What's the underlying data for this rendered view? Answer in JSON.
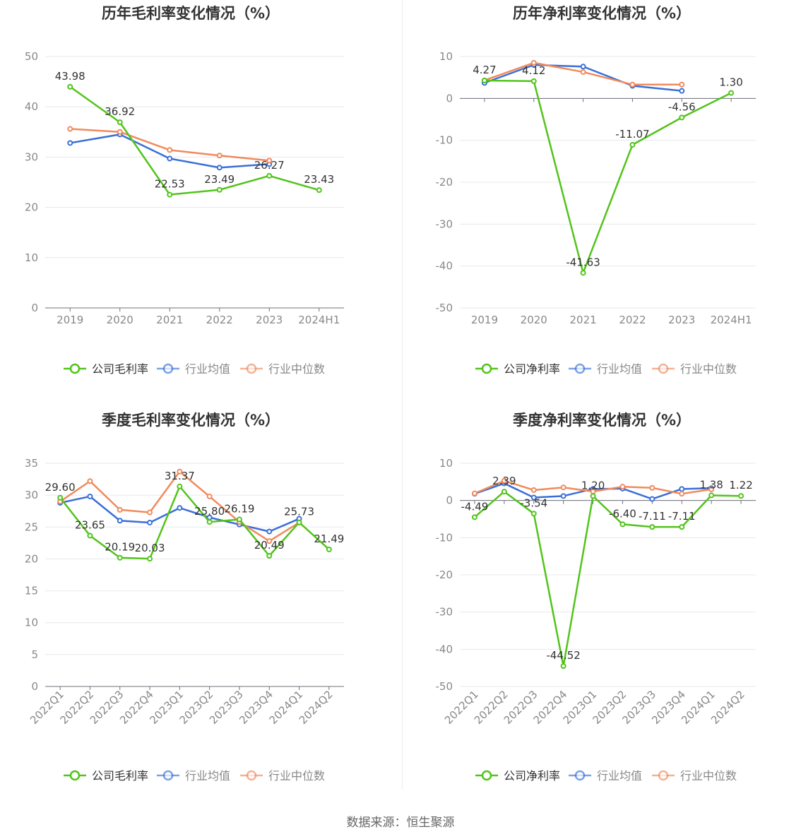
{
  "source": "数据来源：恒生聚源",
  "chart_data": [
    {
      "type": "line",
      "title": "历年毛利率变化情况（%）",
      "categories": [
        "2019",
        "2020",
        "2021",
        "2022",
        "2023",
        "2024H1"
      ],
      "ylim": [
        0,
        50
      ],
      "yticks": [
        0,
        10,
        20,
        30,
        40,
        50
      ],
      "grid": true,
      "legend": "bottom",
      "rotated_xlabels": false,
      "series": [
        {
          "name": "公司毛利率",
          "color": "#52c41a",
          "values": [
            43.98,
            36.92,
            22.53,
            23.49,
            26.27,
            23.43
          ],
          "labels": [
            "43.98",
            "36.92",
            "22.53",
            "23.49",
            "26.27",
            "23.43"
          ]
        },
        {
          "name": "行业均值",
          "color": "#3a6fd8",
          "values": [
            32.8,
            34.5,
            29.7,
            27.9,
            28.6,
            null
          ]
        },
        {
          "name": "行业中位数",
          "color": "#f08a5d",
          "values": [
            35.6,
            35.0,
            31.4,
            30.3,
            29.3,
            null
          ]
        }
      ]
    },
    {
      "type": "line",
      "title": "历年净利率变化情况（%）",
      "categories": [
        "2019",
        "2020",
        "2021",
        "2022",
        "2023",
        "2024H1"
      ],
      "ylim": [
        -50,
        10
      ],
      "yticks": [
        -50,
        -40,
        -30,
        -20,
        -10,
        0,
        10
      ],
      "grid": true,
      "legend": "bottom",
      "rotated_xlabels": false,
      "series": [
        {
          "name": "公司净利率",
          "color": "#52c41a",
          "values": [
            4.27,
            4.12,
            -41.63,
            -11.07,
            -4.56,
            1.3
          ],
          "labels": [
            "4.27",
            "4.12",
            "-41.63",
            "-11.07",
            "-4.56",
            "1.30"
          ]
        },
        {
          "name": "行业均值",
          "color": "#3a6fd8",
          "values": [
            3.7,
            8.0,
            7.6,
            3.0,
            1.8,
            null
          ]
        },
        {
          "name": "行业中位数",
          "color": "#f08a5d",
          "values": [
            4.3,
            8.5,
            6.3,
            3.3,
            3.3,
            null
          ]
        }
      ]
    },
    {
      "type": "line",
      "title": "季度毛利率变化情况（%）",
      "categories": [
        "2022Q1",
        "2022Q2",
        "2022Q3",
        "2022Q4",
        "2023Q1",
        "2023Q2",
        "2023Q3",
        "2023Q4",
        "2024Q1",
        "2024Q2"
      ],
      "ylim": [
        0,
        35
      ],
      "yticks": [
        0,
        5,
        10,
        15,
        20,
        25,
        30,
        35
      ],
      "grid": true,
      "legend": "bottom",
      "rotated_xlabels": true,
      "series": [
        {
          "name": "公司毛利率",
          "color": "#52c41a",
          "values": [
            29.6,
            23.65,
            20.19,
            20.03,
            31.37,
            25.8,
            26.19,
            20.49,
            25.73,
            21.49
          ],
          "labels": [
            "29.60",
            "23.65",
            "20.19",
            "20.03",
            "31.37",
            "25.80",
            "26.19",
            "20.49",
            "25.73",
            "21.49"
          ]
        },
        {
          "name": "行业均值",
          "color": "#3a6fd8",
          "values": [
            28.8,
            29.8,
            26.0,
            25.7,
            28.0,
            26.5,
            25.4,
            24.3,
            26.3,
            null
          ]
        },
        {
          "name": "行业中位数",
          "color": "#f08a5d",
          "values": [
            29.0,
            32.2,
            27.7,
            27.3,
            33.7,
            29.8,
            25.8,
            22.8,
            25.7,
            null
          ]
        }
      ]
    },
    {
      "type": "line",
      "title": "季度净利率变化情况（%）",
      "categories": [
        "2022Q1",
        "2022Q2",
        "2022Q3",
        "2022Q4",
        "2023Q1",
        "2023Q2",
        "2023Q3",
        "2023Q4",
        "2024Q1",
        "2024Q2"
      ],
      "ylim": [
        -50,
        10
      ],
      "yticks": [
        -50,
        -40,
        -30,
        -20,
        -10,
        0,
        10
      ],
      "grid": true,
      "legend": "bottom",
      "rotated_xlabels": true,
      "series": [
        {
          "name": "公司净利率",
          "color": "#52c41a",
          "values": [
            -4.49,
            2.39,
            -3.54,
            -44.52,
            1.2,
            -6.4,
            -7.11,
            -7.11,
            1.38,
            1.22
          ],
          "labels": [
            "-4.49",
            "2.39",
            "-3.54",
            "-44.52",
            "1.20",
            "-6.40",
            "-7.11",
            "-7.11",
            "1.38",
            "1.22"
          ]
        },
        {
          "name": "行业均值",
          "color": "#3a6fd8",
          "values": [
            1.8,
            4.6,
            0.8,
            1.2,
            3.1,
            3.2,
            0.4,
            3.1,
            3.3,
            null
          ]
        },
        {
          "name": "行业中位数",
          "color": "#f08a5d",
          "values": [
            1.9,
            5.3,
            2.8,
            3.5,
            2.4,
            3.7,
            3.4,
            1.8,
            3.0,
            null
          ]
        }
      ]
    }
  ]
}
